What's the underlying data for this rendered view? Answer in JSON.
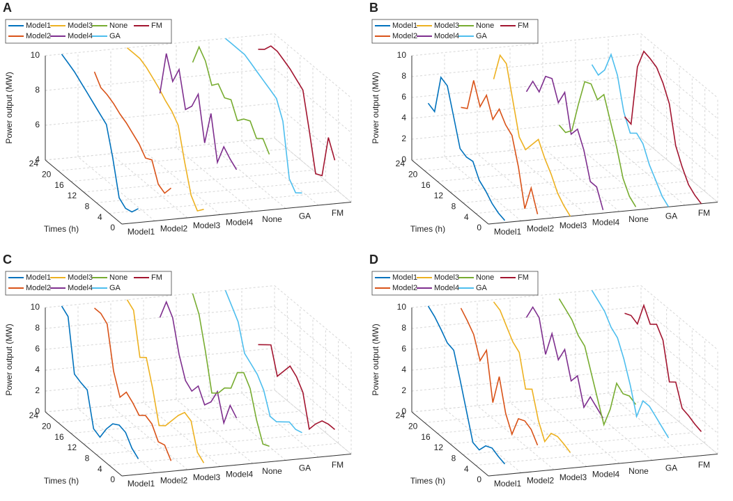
{
  "chart_data": [
    {
      "type": "line3d",
      "label": "A",
      "ylabel": "Power output (MW)",
      "xlabel": "Times (h)",
      "categories": [
        "Model1",
        "Model2",
        "Model3",
        "Model4",
        "None",
        "GA",
        "FM"
      ],
      "x": [
        0,
        2,
        4,
        6,
        8,
        10,
        12,
        14,
        16,
        18,
        20,
        22,
        24
      ],
      "xlim": [
        0,
        24
      ],
      "xticks": [
        0,
        4,
        8,
        12,
        16,
        20,
        24
      ],
      "ylim": [
        4,
        10
      ],
      "yticks": [
        4,
        6,
        8,
        10
      ],
      "grid": true,
      "legend": "upper left",
      "series": [
        {
          "name": "Model1",
          "color": "#0072BD",
          "values": [
            4.8,
            4.3,
            4.2,
            4.5,
            6.5,
            8.1,
            8.4,
            8.7,
            9.0,
            9.3,
            9.6,
            9.8,
            10
          ]
        },
        {
          "name": "Model2",
          "color": "#D95319",
          "values": [
            5.8,
            5.2,
            5.4,
            6.5,
            6.3,
            6.8,
            7.1,
            7.4,
            7.6,
            7.9,
            8.1,
            8.2,
            8.8
          ]
        },
        {
          "name": "Model3",
          "color": "#EDB120",
          "values": [
            4.4,
            4.0,
            4.6,
            6.2,
            8.0,
            8.5,
            8.8,
            9.2,
            9.5,
            9.8,
            10,
            10,
            10
          ]
        },
        {
          "name": "Model4",
          "color": "#7E2F8E",
          "values": [
            6.5,
            6.8,
            7.2,
            6.0,
            8.5,
            6.5,
            9.0,
            8.0,
            7.5,
            9.5,
            8.5,
            9.8,
            7.2
          ]
        },
        {
          "name": "None",
          "color": "#77AC30",
          "values": [
            7.2,
            7.8,
            7.5,
            8.2,
            8.0,
            7.6,
            8.5,
            8.3,
            8.8,
            8.4,
            9.5,
            10,
            8.8
          ]
        },
        {
          "name": "GA",
          "color": "#4DBEEE",
          "values": [
            4.8,
            4.5,
            5.0,
            8.0,
            9.0,
            9.2,
            9.4,
            9.6,
            9.8,
            10,
            10,
            10,
            10
          ]
        },
        {
          "name": "FM",
          "color": "#A2142F",
          "values": [
            6.5,
            7.5,
            5.0,
            4.8,
            7.0,
            9.0,
            9.3,
            9.6,
            9.8,
            10,
            10,
            9.5,
            9.2
          ]
        }
      ]
    },
    {
      "type": "line3d",
      "label": "B",
      "ylabel": "Power output (MW)",
      "xlabel": "Times (h)",
      "categories": [
        "Model1",
        "Model2",
        "Model3",
        "Model4",
        "None",
        "GA",
        "FM"
      ],
      "x": [
        0,
        2,
        4,
        6,
        8,
        10,
        12,
        14,
        16,
        18,
        20,
        22,
        24
      ],
      "xlim": [
        0,
        24
      ],
      "xticks": [
        0,
        4,
        8,
        12,
        16,
        20,
        24
      ],
      "ylim": [
        0,
        10
      ],
      "yticks": [
        0,
        2,
        4,
        6,
        8,
        10
      ],
      "grid": true,
      "legend": "upper left",
      "series": [
        {
          "name": "Model1",
          "color": "#0072BD",
          "values": [
            0.2,
            0.4,
            0.8,
            1.5,
            2.0,
            3.3,
            3.2,
            3.5,
            6.0,
            8.5,
            8.8,
            5.0,
            5.3
          ]
        },
        {
          "name": "Model2",
          "color": "#D95319",
          "values": [
            0.5,
            2.5,
            0,
            3.5,
            6.0,
            6.5,
            7.5,
            6.0,
            7.8,
            6.2,
            8.2,
            5.0,
            4.6
          ]
        },
        {
          "name": "Model3",
          "color": "#EDB120",
          "values": [
            0,
            0.5,
            1.2,
            2.5,
            3.5,
            4.8,
            3.8,
            2.8,
            3.5,
            6.5,
            9.5,
            9.8,
            7.0
          ]
        },
        {
          "name": "Model4",
          "color": "#7E2F8E",
          "values": [
            0.3,
            2.0,
            2.0,
            4.5,
            6.0,
            5.0,
            8.5,
            7.0,
            8.8,
            8.5,
            6.5,
            7.0,
            5.5
          ]
        },
        {
          "name": "None",
          "color": "#77AC30",
          "values": [
            0.3,
            0.8,
            2.0,
            4.5,
            6.5,
            8.5,
            7.5,
            8.5,
            8.2,
            5.5,
            2.5,
            1.8,
            2.0
          ]
        },
        {
          "name": "GA",
          "color": "#4DBEEE",
          "values": [
            0,
            0.5,
            1.5,
            2.5,
            4.0,
            4.5,
            4.0,
            5.5,
            8.5,
            10,
            8.0,
            7.0,
            7.5
          ]
        },
        {
          "name": "FM",
          "color": "#A2142F",
          "values": [
            0,
            0.3,
            0.8,
            2.0,
            3.5,
            7.0,
            8.5,
            9.5,
            9.8,
            10,
            8.0,
            2.0,
            2.2
          ]
        }
      ]
    },
    {
      "type": "line3d",
      "label": "C",
      "ylabel": "Power output (MW)",
      "xlabel": "Times (h)",
      "categories": [
        "Model1",
        "Model2",
        "Model3",
        "Model4",
        "None",
        "GA",
        "FM"
      ],
      "x": [
        0,
        2,
        4,
        6,
        8,
        10,
        12,
        14,
        16,
        18,
        20,
        22,
        24
      ],
      "xlim": [
        0,
        24
      ],
      "xticks": [
        0,
        4,
        8,
        12,
        16,
        20,
        24
      ],
      "ylim": [
        0,
        10
      ],
      "yticks": [
        0,
        2,
        4,
        6,
        8,
        10
      ],
      "grid": true,
      "legend": "upper left",
      "series": [
        {
          "name": "Model1",
          "color": "#0072BD",
          "values": [
            1.5,
            2.0,
            3.0,
            3.2,
            2.8,
            1.8,
            0.5,
            0.8,
            4.0,
            4.2,
            4.5,
            9.5,
            10
          ]
        },
        {
          "name": "Model2",
          "color": "#D95319",
          "values": [
            1.0,
            2.0,
            1.8,
            3.0,
            3.3,
            2.8,
            3.5,
            4.0,
            3.0,
            5.0,
            9.0,
            9.5,
            9.5
          ]
        },
        {
          "name": "Model3",
          "color": "#EDB120",
          "values": [
            0.5,
            1.0,
            3.5,
            3.8,
            3.0,
            2.0,
            1.0,
            0.5,
            3.5,
            6.0,
            5.5,
            9.5,
            10
          ]
        },
        {
          "name": "Model4",
          "color": "#7E2F8E",
          "values": [
            4.5,
            5.2,
            3.0,
            5.5,
            4.0,
            3.2,
            4.5,
            3.5,
            4.0,
            6.0,
            9.0,
            10,
            8.0
          ]
        },
        {
          "name": "None",
          "color": "#77AC30",
          "values": [
            1.5,
            1.2,
            3.0,
            5.5,
            6.5,
            6.0,
            4.0,
            3.5,
            2.5,
            2.0,
            5.5,
            8.5,
            10
          ]
        },
        {
          "name": "GA",
          "color": "#4DBEEE",
          "values": [
            2.5,
            2.3,
            2.5,
            2.0,
            1.5,
            1.5,
            3.5,
            4.5,
            5.0,
            5.5,
            8.0,
            9.0,
            10
          ]
        },
        {
          "name": "FM",
          "color": "#A2142F",
          "values": [
            2.5,
            2.5,
            2.3,
            1.5,
            0.5,
            3.5,
            4.5,
            5.0,
            4.0,
            3.0,
            5.5,
            5.0,
            4.5
          ]
        }
      ]
    },
    {
      "type": "line3d",
      "label": "D",
      "ylabel": "Power output (MW)",
      "xlabel": "Times (h)",
      "categories": [
        "Model1",
        "Model2",
        "Model3",
        "Model4",
        "None",
        "GA",
        "FM"
      ],
      "x": [
        0,
        2,
        4,
        6,
        8,
        10,
        12,
        14,
        16,
        18,
        20,
        22,
        24
      ],
      "xlim": [
        0,
        24
      ],
      "xticks": [
        0,
        4,
        8,
        12,
        16,
        20,
        24
      ],
      "ylim": [
        0,
        10
      ],
      "yticks": [
        0,
        2,
        4,
        6,
        8,
        10
      ],
      "grid": true,
      "legend": "upper left",
      "series": [
        {
          "name": "Model1",
          "color": "#0072BD",
          "values": [
            1.0,
            1.2,
            1.5,
            1.2,
            0.3,
            0.5,
            3.0,
            5.5,
            7.8,
            8.0,
            8.8,
            9.5,
            10
          ]
        },
        {
          "name": "Model2",
          "color": "#D95319",
          "values": [
            2.5,
            3.5,
            3.8,
            3.5,
            1.5,
            3.0,
            6.0,
            3.0,
            7.5,
            6.0,
            8.0,
            8.8,
            9.5
          ]
        },
        {
          "name": "Model3",
          "color": "#EDB120",
          "values": [
            1.5,
            1.8,
            2.0,
            1.8,
            0.5,
            2.0,
            4.5,
            4.0,
            7.0,
            7.5,
            8.5,
            9.5,
            9.8
          ]
        },
        {
          "name": "Model4",
          "color": "#7E2F8E",
          "values": [
            4.5,
            5.0,
            5.5,
            4.0,
            6.5,
            5.5,
            8.0,
            6.5,
            8.5,
            6.0,
            9.0,
            9.5,
            8.0
          ]
        },
        {
          "name": "None",
          "color": "#77AC30",
          "values": [
            5.5,
            5.8,
            5.5,
            6.0,
            3.0,
            1.0,
            3.0,
            5.0,
            7.0,
            7.5,
            8.5,
            9.0,
            9.5
          ]
        },
        {
          "name": "GA",
          "color": "#4DBEEE",
          "values": [
            2.0,
            2.5,
            3.0,
            3.5,
            3.5,
            1.5,
            4.0,
            6.0,
            7.5,
            8.0,
            9.0,
            9.5,
            10
          ]
        },
        {
          "name": "FM",
          "color": "#A2142F",
          "values": [
            2.3,
            2.5,
            2.8,
            3.0,
            5.0,
            4.5,
            8.0,
            9.0,
            8.5,
            9.8,
            7.5,
            7.8,
            7.5
          ]
        }
      ]
    }
  ]
}
